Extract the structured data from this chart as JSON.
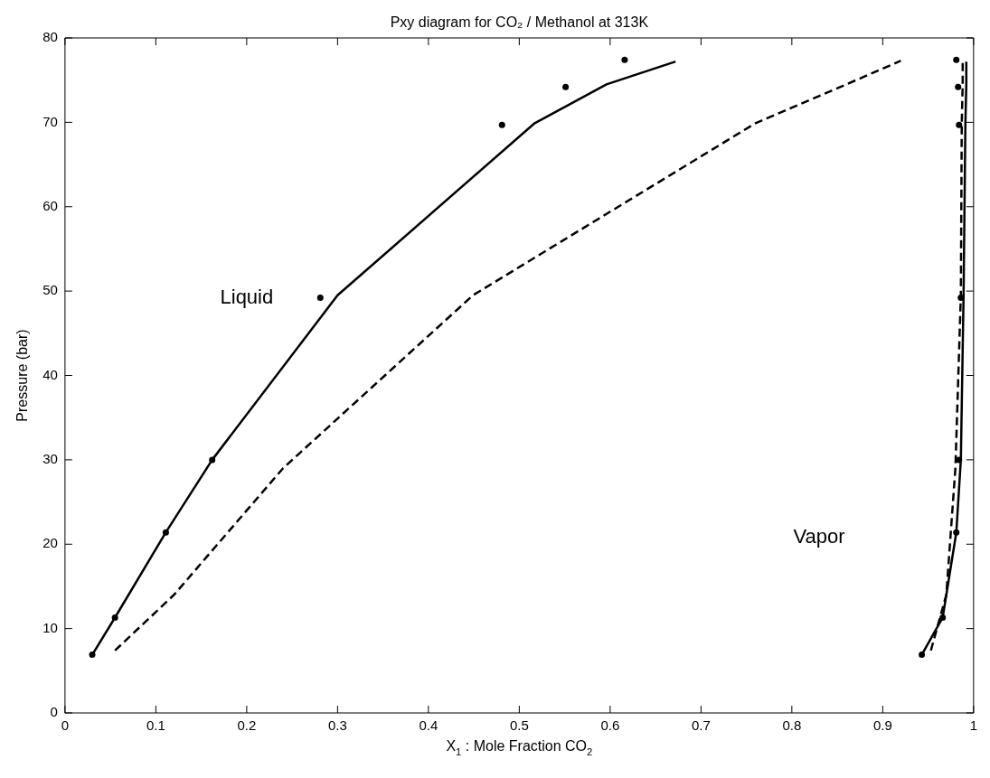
{
  "chart_data": {
    "type": "line",
    "title": "Pxy diagram for CO₂ / Methanol at 313K",
    "xlabel": "X$_{1}$ : Mole Fraction CO$_{2}$",
    "ylabel": "Pressure (bar)",
    "xlim": [
      0,
      1
    ],
    "xticks": [
      0,
      0.1,
      0.2,
      0.3,
      0.4,
      0.5,
      0.6,
      0.7,
      0.8,
      0.9,
      1
    ],
    "ylim": [
      0,
      80
    ],
    "yticks": [
      0,
      10,
      20,
      30,
      40,
      50,
      60,
      70,
      80
    ],
    "grid": false,
    "legend": false,
    "series": [
      {
        "type": "scatter",
        "color": "#000000",
        "marker": "circle",
        "x": [
          0.03,
          0.055,
          0.111,
          0.162,
          0.281,
          0.481,
          0.551,
          0.616
        ],
        "values": [
          6.9,
          11.3,
          21.4,
          30,
          49.2,
          69.7,
          74.2,
          77.4
        ]
      },
      {
        "type": "scatter",
        "color": "#000000",
        "marker": "circle",
        "x": [
          0.943,
          0.966,
          0.981,
          0.984,
          0.986,
          0.984,
          0.983,
          0.981
        ],
        "values": [
          6.9,
          11.3,
          21.4,
          30,
          49.2,
          69.7,
          74.2,
          77.4
        ]
      },
      {
        "color": "#000000",
        "line_style": "solid",
        "marker": "none",
        "x": [
          0.03,
          0.055,
          0.111,
          0.162,
          0.3,
          0.517,
          0.596,
          0.672
        ],
        "values": [
          6.9,
          11.3,
          21.4,
          30,
          49.5,
          69.9,
          74.5,
          77.2
        ]
      },
      {
        "color": "#000000",
        "line_style": "solid",
        "marker": "none",
        "x": [
          0.943,
          0.966,
          0.981,
          0.986,
          0.989,
          0.991,
          0.992,
          0.992
        ],
        "values": [
          6.9,
          11.3,
          21.4,
          30,
          49.5,
          69.9,
          74.5,
          77.2
        ]
      },
      {
        "color": "#000000",
        "line_style": "dashed",
        "marker": "none",
        "x": [
          0.055,
          0.12,
          0.24,
          0.449,
          0.76,
          0.86,
          0.92
        ],
        "values": [
          7.4,
          14,
          29,
          49.5,
          69.9,
          74.5,
          77.3
        ]
      },
      {
        "color": "#000000",
        "line_style": "dashed",
        "marker": "none",
        "x": [
          0.953,
          0.97,
          0.98,
          0.986,
          0.987,
          0.988,
          0.988
        ],
        "values": [
          7.4,
          14,
          29,
          49.5,
          69.9,
          74.5,
          77.3
        ]
      }
    ],
    "annotations": [
      "Liquid",
      "Vapor"
    ]
  }
}
